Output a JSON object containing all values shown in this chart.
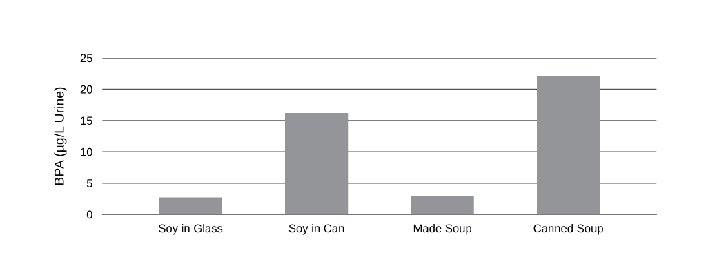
{
  "chart_data": {
    "type": "bar",
    "ylabel": "BPA (µg/L Urine)",
    "categories": [
      "Soy in Glass",
      "Soy in Can",
      "Made Soup",
      "Canned Soup"
    ],
    "values": [
      2.7,
      16.2,
      2.9,
      22.1
    ],
    "color": "#939598",
    "ylim": [
      0,
      25
    ],
    "yticks": [
      0,
      5,
      10,
      15,
      20,
      25
    ],
    "grid": "y"
  }
}
